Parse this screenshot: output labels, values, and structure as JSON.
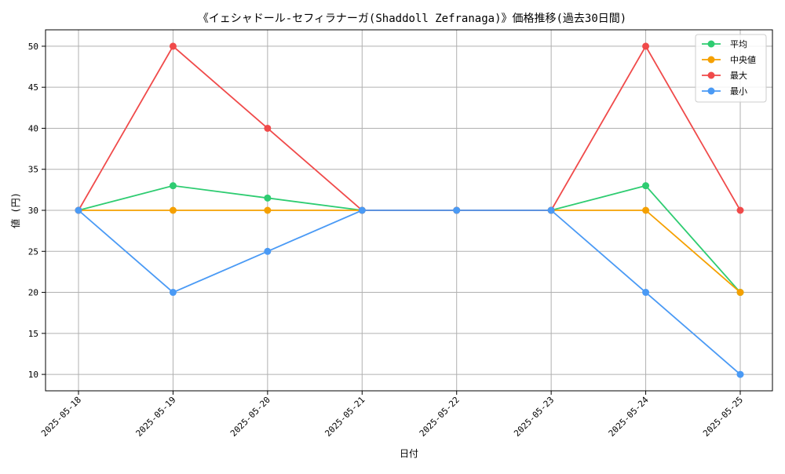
{
  "chart_data": {
    "type": "line",
    "title": "《イェシャドール-セフィラナーガ(Shaddoll Zefranaga)》価格推移(過去30日間)",
    "xlabel": "日付",
    "ylabel": "値 (円)",
    "categories": [
      "2025-05-18",
      "2025-05-19",
      "2025-05-20",
      "2025-05-21",
      "2025-05-22",
      "2025-05-23",
      "2025-05-24",
      "2025-05-25"
    ],
    "ylim": [
      8,
      52
    ],
    "yticks": [
      10,
      15,
      20,
      25,
      30,
      35,
      40,
      45,
      50
    ],
    "grid": true,
    "legend_position": "top-right",
    "series": [
      {
        "name": "平均",
        "color": "#2ecc71",
        "values": [
          30,
          33,
          31.5,
          30,
          30,
          30,
          33,
          20
        ]
      },
      {
        "name": "中央値",
        "color": "#f5a000",
        "values": [
          30,
          30,
          30,
          30,
          30,
          30,
          30,
          20
        ]
      },
      {
        "name": "最大",
        "color": "#f04a4a",
        "values": [
          30,
          50,
          40,
          30,
          30,
          30,
          50,
          30
        ]
      },
      {
        "name": "最小",
        "color": "#4a9af5",
        "values": [
          30,
          20,
          25,
          30,
          30,
          30,
          20,
          10
        ]
      }
    ]
  }
}
